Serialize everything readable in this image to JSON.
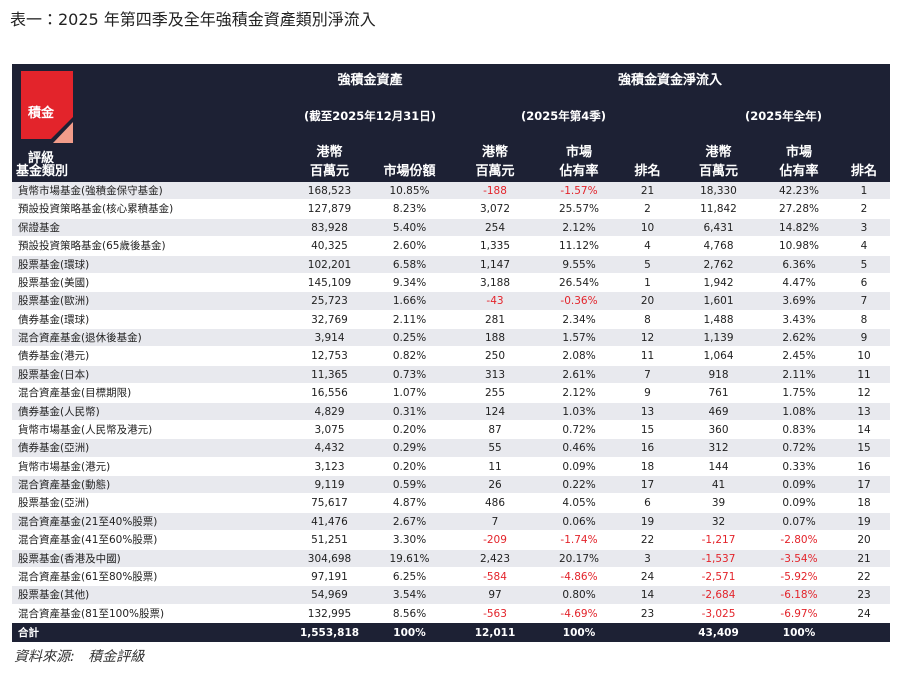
{
  "title": "表一：2025 年第四季及全年強積金資產類別淨流入",
  "logo_lines": [
    "積金",
    "評級"
  ],
  "header": {
    "group_assets": "強積金資產",
    "group_flows": "強積金資金淨流入",
    "period_assets": "(截至2025年12月31日)",
    "period_q4": "(2025年第4季)",
    "period_year": "(2025年全年)",
    "category": "基金類別",
    "columns": [
      [
        "港幣",
        "百萬元"
      ],
      [
        "市場份額"
      ],
      [
        "港幣",
        "百萬元"
      ],
      [
        "市場",
        "佔有率"
      ],
      [
        "排名"
      ],
      [
        "港幣",
        "百萬元"
      ],
      [
        "市場",
        "佔有率"
      ],
      [
        "排名"
      ]
    ]
  },
  "table": {
    "rows": [
      [
        "貨幣市場基金(強積金保守基金)",
        "168,523",
        "10.85%",
        "-188",
        "-1.57%",
        "21",
        "18,330",
        "42.23%",
        "1"
      ],
      [
        "預設投資策略基金(核心累積基金)",
        "127,879",
        "8.23%",
        "3,072",
        "25.57%",
        "2",
        "11,842",
        "27.28%",
        "2"
      ],
      [
        "保證基金",
        "83,928",
        "5.40%",
        "254",
        "2.12%",
        "10",
        "6,431",
        "14.82%",
        "3"
      ],
      [
        "預設投資策略基金(65歲後基金)",
        "40,325",
        "2.60%",
        "1,335",
        "11.12%",
        "4",
        "4,768",
        "10.98%",
        "4"
      ],
      [
        "股票基金(環球)",
        "102,201",
        "6.58%",
        "1,147",
        "9.55%",
        "5",
        "2,762",
        "6.36%",
        "5"
      ],
      [
        "股票基金(美國)",
        "145,109",
        "9.34%",
        "3,188",
        "26.54%",
        "1",
        "1,942",
        "4.47%",
        "6"
      ],
      [
        "股票基金(歐洲)",
        "25,723",
        "1.66%",
        "-43",
        "-0.36%",
        "20",
        "1,601",
        "3.69%",
        "7"
      ],
      [
        "債券基金(環球)",
        "32,769",
        "2.11%",
        "281",
        "2.34%",
        "8",
        "1,488",
        "3.43%",
        "8"
      ],
      [
        "混合資產基金(退休後基金)",
        "3,914",
        "0.25%",
        "188",
        "1.57%",
        "12",
        "1,139",
        "2.62%",
        "9"
      ],
      [
        "債券基金(港元)",
        "12,753",
        "0.82%",
        "250",
        "2.08%",
        "11",
        "1,064",
        "2.45%",
        "10"
      ],
      [
        "股票基金(日本)",
        "11,365",
        "0.73%",
        "313",
        "2.61%",
        "7",
        "918",
        "2.11%",
        "11"
      ],
      [
        "混合資產基金(目標期限)",
        "16,556",
        "1.07%",
        "255",
        "2.12%",
        "9",
        "761",
        "1.75%",
        "12"
      ],
      [
        "債券基金(人民幣)",
        "4,829",
        "0.31%",
        "124",
        "1.03%",
        "13",
        "469",
        "1.08%",
        "13"
      ],
      [
        "貨幣市場基金(人民幣及港元)",
        "3,075",
        "0.20%",
        "87",
        "0.72%",
        "15",
        "360",
        "0.83%",
        "14"
      ],
      [
        "債券基金(亞洲)",
        "4,432",
        "0.29%",
        "55",
        "0.46%",
        "16",
        "312",
        "0.72%",
        "15"
      ],
      [
        "貨幣市場基金(港元)",
        "3,123",
        "0.20%",
        "11",
        "0.09%",
        "18",
        "144",
        "0.33%",
        "16"
      ],
      [
        "混合資產基金(動態)",
        "9,119",
        "0.59%",
        "26",
        "0.22%",
        "17",
        "41",
        "0.09%",
        "17"
      ],
      [
        "股票基金(亞洲)",
        "75,617",
        "4.87%",
        "486",
        "4.05%",
        "6",
        "39",
        "0.09%",
        "18"
      ],
      [
        "混合資產基金(21至40%股票)",
        "41,476",
        "2.67%",
        "7",
        "0.06%",
        "19",
        "32",
        "0.07%",
        "19"
      ],
      [
        "混合資產基金(41至60%股票)",
        "51,251",
        "3.30%",
        "-209",
        "-1.74%",
        "22",
        "-1,217",
        "-2.80%",
        "20"
      ],
      [
        "股票基金(香港及中國)",
        "304,698",
        "19.61%",
        "2,423",
        "20.17%",
        "3",
        "-1,537",
        "-3.54%",
        "21"
      ],
      [
        "混合資產基金(61至80%股票)",
        "97,191",
        "6.25%",
        "-584",
        "-4.86%",
        "24",
        "-2,571",
        "-5.92%",
        "22"
      ],
      [
        "股票基金(其他)",
        "54,969",
        "3.54%",
        "97",
        "0.80%",
        "14",
        "-2,684",
        "-6.18%",
        "23"
      ],
      [
        "混合資產基金(81至100%股票)",
        "132,995",
        "8.56%",
        "-563",
        "-4.69%",
        "23",
        "-3,025",
        "-6.97%",
        "24"
      ]
    ]
  },
  "total": {
    "label": "合計",
    "assets_hkd": "1,553,818",
    "assets_share": "100%",
    "q4_hkd": "12,011",
    "q4_share": "100%",
    "year_hkd": "43,409",
    "year_share": "100%"
  },
  "source": "資料來源:   積金評級"
}
